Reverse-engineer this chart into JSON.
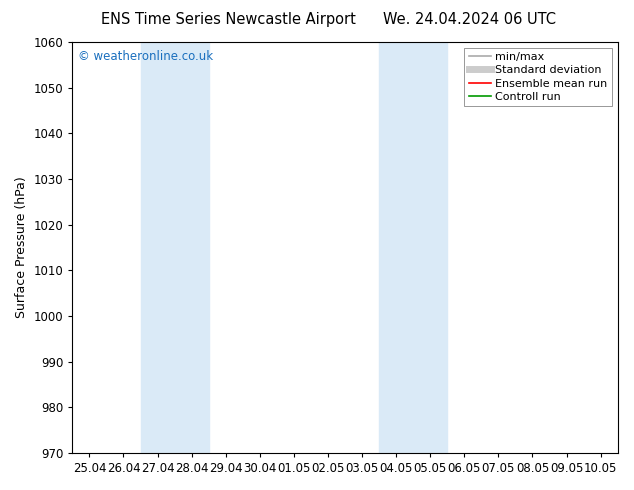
{
  "title_left": "ENS Time Series Newcastle Airport",
  "title_right": "We. 24.04.2024 06 UTC",
  "ylabel": "Surface Pressure (hPa)",
  "ylim": [
    970,
    1060
  ],
  "yticks": [
    970,
    980,
    990,
    1000,
    1010,
    1020,
    1030,
    1040,
    1050,
    1060
  ],
  "x_labels": [
    "25.04",
    "26.04",
    "27.04",
    "28.04",
    "29.04",
    "30.04",
    "01.05",
    "02.05",
    "03.05",
    "04.05",
    "05.05",
    "06.05",
    "07.05",
    "08.05",
    "09.05",
    "10.05"
  ],
  "x_values": [
    0,
    1,
    2,
    3,
    4,
    5,
    6,
    7,
    8,
    9,
    10,
    11,
    12,
    13,
    14,
    15
  ],
  "shaded_regions": [
    {
      "xmin": 2,
      "xmax": 4,
      "color": "#daeaf7"
    },
    {
      "xmin": 9,
      "xmax": 11,
      "color": "#daeaf7"
    }
  ],
  "watermark": "© weatheronline.co.uk",
  "watermark_color": "#1a6fbe",
  "legend_entries": [
    {
      "label": "min/max",
      "color": "#aaaaaa",
      "lw": 1.2,
      "ls": "-"
    },
    {
      "label": "Standard deviation",
      "color": "#cccccc",
      "lw": 5,
      "ls": "-"
    },
    {
      "label": "Ensemble mean run",
      "color": "#ff0000",
      "lw": 1.2,
      "ls": "-"
    },
    {
      "label": "Controll run",
      "color": "#009900",
      "lw": 1.2,
      "ls": "-"
    }
  ],
  "bg_color": "#ffffff",
  "title_fontsize": 10.5,
  "axis_fontsize": 9,
  "tick_fontsize": 8.5,
  "legend_fontsize": 8
}
